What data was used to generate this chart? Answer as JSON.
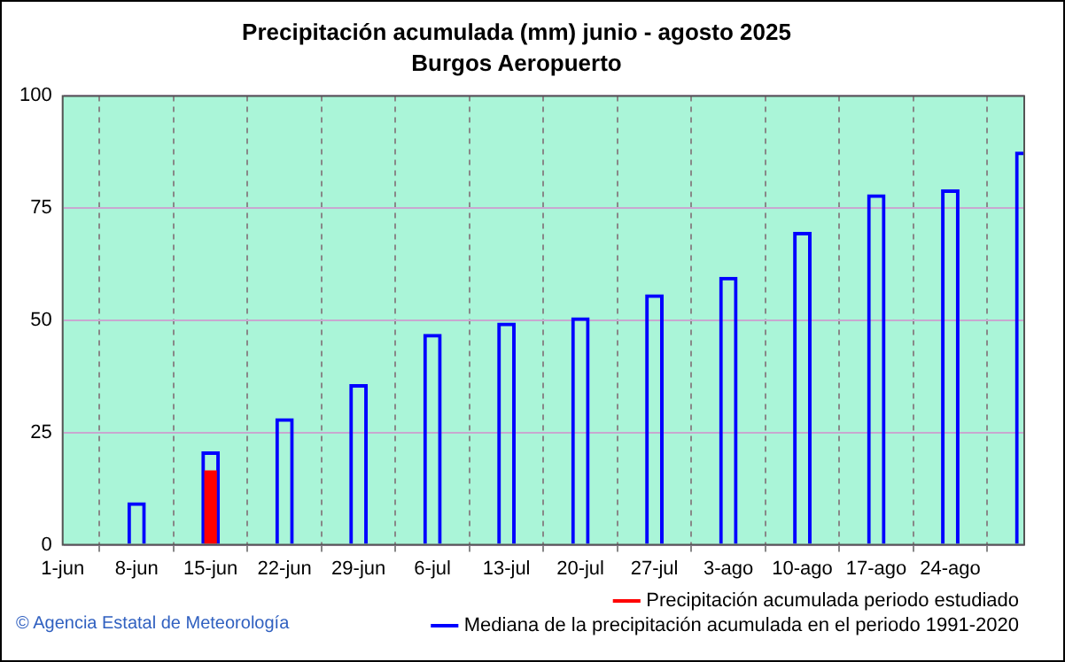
{
  "chart_data": {
    "type": "bar",
    "title": "Precipitación acumulada (mm) junio - agosto 2025",
    "subtitle": "Burgos Aeropuerto",
    "categories": [
      "1-jun",
      "8-jun",
      "15-jun",
      "22-jun",
      "29-jun",
      "6-jul",
      "13-jul",
      "20-jul",
      "27-jul",
      "3-ago",
      "10-ago",
      "17-ago",
      "24-ago",
      null
    ],
    "series": [
      {
        "name": "Precipitación acumulada periodo estudiado",
        "color": "#ff0000",
        "values": [
          null,
          null,
          16.6,
          null,
          null,
          null,
          null,
          null,
          null,
          null,
          null,
          null,
          null,
          null
        ]
      },
      {
        "name": "Mediana de la precipitación acumulada en el periodo 1991-2020",
        "color": "#0000ff",
        "values": [
          null,
          9.5,
          20.8,
          28.2,
          35.8,
          47.0,
          49.5,
          50.7,
          55.8,
          59.7,
          69.7,
          78.1,
          79.2,
          87.6
        ]
      }
    ],
    "ylim": [
      0,
      100
    ],
    "yticks": [
      0,
      25,
      50,
      75,
      100
    ],
    "grid": true,
    "legend": "bottom",
    "annotations": [
      "© Agencia Estatal de Meteorología"
    ]
  }
}
